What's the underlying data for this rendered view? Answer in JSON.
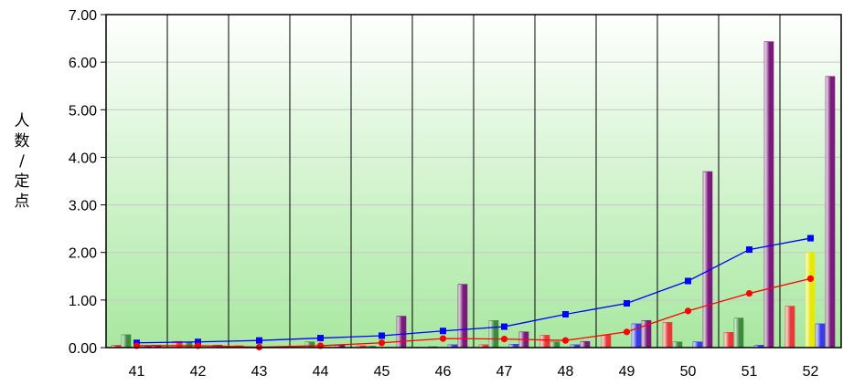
{
  "chart_data": {
    "type": "bar",
    "title": "",
    "xlabel": "",
    "ylabel": "人数/定点",
    "ylim": [
      0,
      7
    ],
    "yticks": [
      "0.00",
      "1.00",
      "2.00",
      "3.00",
      "4.00",
      "5.00",
      "6.00",
      "7.00"
    ],
    "categories": [
      "41",
      "42",
      "43",
      "44",
      "45",
      "46",
      "47",
      "48",
      "49",
      "50",
      "51",
      "52"
    ],
    "grid": true,
    "legend": "none",
    "colors": {
      "plot_bg_top": "#ffffff",
      "plot_bg_bottom": "#a8e8a0",
      "red": "#e83838",
      "green": "#3c8a3c",
      "yellow": "#e8e800",
      "blue": "#3a3ae8",
      "purple": "#7a1a7a",
      "line_blue": "#0000ff",
      "line_red": "#ff0000"
    },
    "bar_series": [
      {
        "color": "red",
        "values": [
          0.05,
          0.13,
          0.04,
          0.0,
          0.04,
          0.0,
          0.06,
          0.26,
          0.26,
          0.53,
          0.32,
          0.87
        ]
      },
      {
        "color": "green",
        "values": [
          0.27,
          0.12,
          0.0,
          0.12,
          0.03,
          0.02,
          0.57,
          0.12,
          0.0,
          0.12,
          0.62,
          0.0
        ]
      },
      {
        "color": "yellow",
        "values": [
          0.0,
          0.0,
          0.0,
          0.0,
          0.0,
          0.0,
          0.0,
          0.0,
          0.0,
          0.0,
          0.0,
          2.0
        ]
      },
      {
        "color": "blue",
        "values": [
          0.04,
          0.0,
          0.0,
          0.0,
          0.0,
          0.06,
          0.07,
          0.06,
          0.5,
          0.12,
          0.05,
          0.5
        ]
      },
      {
        "color": "purple",
        "values": [
          0.05,
          0.05,
          0.0,
          0.05,
          0.66,
          1.33,
          0.33,
          0.13,
          0.57,
          3.7,
          6.43,
          5.7
        ]
      }
    ],
    "line_series": [
      {
        "color": "line_blue",
        "marker": "square",
        "values": [
          0.1,
          0.12,
          0.15,
          0.2,
          0.25,
          0.35,
          0.44,
          0.7,
          0.93,
          1.4,
          2.06,
          2.3
        ]
      },
      {
        "color": "line_red",
        "marker": "circle",
        "values": [
          0.04,
          0.04,
          0.01,
          0.04,
          0.1,
          0.19,
          0.18,
          0.15,
          0.33,
          0.77,
          1.14,
          1.45
        ]
      }
    ]
  }
}
